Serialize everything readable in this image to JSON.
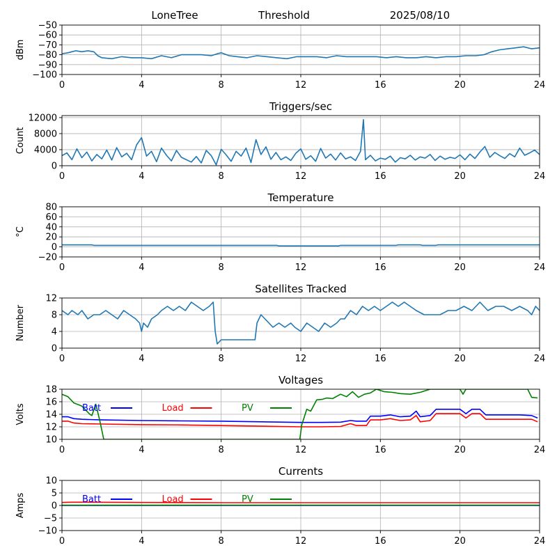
{
  "header": {
    "station": "LoneTree",
    "mode": "Threshold",
    "date": "2025/08/10"
  },
  "chart_data": [
    {
      "id": "dbm",
      "type": "line",
      "title": "",
      "xlabel": "",
      "ylabel": "dBm",
      "xlim": [
        0,
        24
      ],
      "ylim": [
        -100,
        -50
      ],
      "xticks": [
        "0",
        "4",
        "8",
        "12",
        "16",
        "20",
        "24"
      ],
      "yticks": [
        "−50",
        "−60",
        "−70",
        "−80",
        "−90",
        "−100"
      ],
      "ytick_values": [
        -50,
        -60,
        -70,
        -80,
        -90,
        -100
      ],
      "grid": true,
      "series": [
        {
          "color": "#1f77b4",
          "x": [
            0,
            0.3,
            0.5,
            0.7,
            1.0,
            1.3,
            1.6,
            1.8,
            2.0,
            2.5,
            3.0,
            3.5,
            4.0,
            4.5,
            5.0,
            5.5,
            6.0,
            6.5,
            7.0,
            7.5,
            7.8,
            8.0,
            8.4,
            8.8,
            9.3,
            9.8,
            10.3,
            10.8,
            11.3,
            11.8,
            12.3,
            12.8,
            13.3,
            13.8,
            14.3,
            14.8,
            15.3,
            15.8,
            16.3,
            16.8,
            17.3,
            17.8,
            18.3,
            18.8,
            19.3,
            19.8,
            20.3,
            20.8,
            21.2,
            21.6,
            22.0,
            22.4,
            22.8,
            23.2,
            23.6,
            24.0
          ],
          "y": [
            -79,
            -78,
            -77,
            -76,
            -77,
            -76,
            -77,
            -81,
            -83,
            -84,
            -82,
            -83,
            -83,
            -84,
            -81,
            -83,
            -80,
            -80,
            -80,
            -81,
            -79,
            -78,
            -81,
            -82,
            -83,
            -81,
            -82,
            -83,
            -84,
            -82,
            -82,
            -82,
            -83,
            -81,
            -82,
            -82,
            -82,
            -82,
            -83,
            -82,
            -83,
            -83,
            -82,
            -83,
            -82,
            -82,
            -81,
            -81,
            -80,
            -77,
            -75,
            -74,
            -73,
            -72,
            -74,
            -73
          ]
        }
      ]
    },
    {
      "id": "triggers",
      "type": "line",
      "title": "Triggers/sec",
      "xlabel": "",
      "ylabel": "Count",
      "xlim": [
        0,
        24
      ],
      "ylim": [
        0,
        12500
      ],
      "xticks": [
        "0",
        "4",
        "8",
        "12",
        "16",
        "20",
        "24"
      ],
      "yticks": [
        "0",
        "4000",
        "8000",
        "12000"
      ],
      "ytick_values": [
        0,
        4000,
        8000,
        12000
      ],
      "grid": true,
      "series": [
        {
          "color": "#1f77b4",
          "x": [
            0,
            0.25,
            0.5,
            0.75,
            1.0,
            1.25,
            1.5,
            1.75,
            2.0,
            2.25,
            2.5,
            2.75,
            3.0,
            3.25,
            3.5,
            3.75,
            4.0,
            4.25,
            4.5,
            4.75,
            5.0,
            5.25,
            5.5,
            5.75,
            6.0,
            6.25,
            6.5,
            6.75,
            7.0,
            7.25,
            7.5,
            7.75,
            8.0,
            8.25,
            8.5,
            8.75,
            9.0,
            9.25,
            9.5,
            9.75,
            10.0,
            10.25,
            10.5,
            10.75,
            11.0,
            11.25,
            11.5,
            11.75,
            12.0,
            12.25,
            12.5,
            12.75,
            13.0,
            13.25,
            13.5,
            13.75,
            14.0,
            14.25,
            14.5,
            14.75,
            15.0,
            15.15,
            15.25,
            15.5,
            15.75,
            16.0,
            16.25,
            16.5,
            16.75,
            17.0,
            17.25,
            17.5,
            17.75,
            18.0,
            18.25,
            18.5,
            18.75,
            19.0,
            19.25,
            19.5,
            19.75,
            20.0,
            20.25,
            20.5,
            20.75,
            21.0,
            21.25,
            21.5,
            21.75,
            22.0,
            22.25,
            22.5,
            22.75,
            23.0,
            23.25,
            23.5,
            23.75,
            24.0
          ],
          "y": [
            2500,
            3200,
            1500,
            4200,
            2000,
            3400,
            1200,
            2800,
            1700,
            3900,
            1400,
            4500,
            2200,
            3100,
            1500,
            5200,
            7000,
            2400,
            3600,
            1000,
            4400,
            2600,
            1200,
            3800,
            2100,
            1500,
            900,
            2300,
            700,
            3800,
            2500,
            200,
            4100,
            2700,
            1100,
            3600,
            2400,
            4400,
            800,
            6500,
            2800,
            4700,
            1600,
            3300,
            1500,
            2200,
            1300,
            3100,
            4200,
            1600,
            2500,
            1100,
            4300,
            1900,
            2900,
            1400,
            3200,
            1700,
            2200,
            1300,
            3600,
            11500,
            1500,
            2600,
            1200,
            1900,
            1600,
            2400,
            900,
            2000,
            1700,
            2600,
            1400,
            2200,
            1900,
            2800,
            1300,
            2400,
            1600,
            2100,
            1800,
            2700,
            1500,
            2900,
            1800,
            3400,
            4800,
            2100,
            3300,
            2500,
            1800,
            3000,
            2200,
            4400,
            2600,
            3200,
            3900,
            2800
          ]
        }
      ]
    },
    {
      "id": "temperature",
      "type": "line",
      "title": "Temperature",
      "xlabel": "",
      "ylabel": "°C",
      "xlim": [
        0,
        24
      ],
      "ylim": [
        -20,
        80
      ],
      "xticks": [
        "0",
        "4",
        "8",
        "12",
        "16",
        "20",
        "24"
      ],
      "yticks": [
        "−20",
        "0",
        "20",
        "40",
        "60",
        "80"
      ],
      "ytick_values": [
        -20,
        0,
        20,
        40,
        60,
        80
      ],
      "grid": true,
      "series": [
        {
          "color": "#1f77b4",
          "x": [
            0,
            1.5,
            1.6,
            10.8,
            10.9,
            13.9,
            14.0,
            16.8,
            16.9,
            18.0,
            18.1,
            18.8,
            18.9,
            24.0
          ],
          "y": [
            4,
            4,
            3,
            3,
            2,
            2,
            3,
            3,
            4,
            4,
            3,
            3,
            4,
            4
          ]
        }
      ]
    },
    {
      "id": "satellites",
      "type": "line",
      "title": "Satellites Tracked",
      "xlabel": "",
      "ylabel": "Number",
      "xlim": [
        0,
        24
      ],
      "ylim": [
        0,
        12
      ],
      "xticks": [
        "0",
        "4",
        "8",
        "12",
        "16",
        "20",
        "24"
      ],
      "yticks": [
        "0",
        "4",
        "8",
        "12"
      ],
      "ytick_values": [
        0,
        4,
        8,
        12
      ],
      "grid": true,
      "series": [
        {
          "color": "#1f77b4",
          "x": [
            0,
            0.3,
            0.5,
            0.8,
            1.0,
            1.3,
            1.6,
            1.9,
            2.2,
            2.5,
            2.8,
            3.1,
            3.4,
            3.7,
            3.9,
            4.0,
            4.1,
            4.3,
            4.5,
            4.8,
            5.0,
            5.3,
            5.6,
            5.9,
            6.2,
            6.5,
            6.8,
            7.1,
            7.4,
            7.6,
            7.7,
            7.8,
            8.0,
            9.0,
            9.7,
            9.8,
            10.0,
            10.2,
            10.4,
            10.6,
            10.9,
            11.2,
            11.5,
            11.7,
            12.0,
            12.3,
            12.6,
            12.9,
            13.2,
            13.5,
            13.8,
            14.0,
            14.2,
            14.5,
            14.8,
            15.1,
            15.4,
            15.7,
            16.0,
            16.3,
            16.6,
            16.9,
            17.2,
            17.5,
            17.8,
            18.2,
            18.6,
            19.0,
            19.4,
            19.8,
            20.2,
            20.6,
            21.0,
            21.4,
            21.8,
            22.2,
            22.6,
            23.0,
            23.4,
            23.6,
            23.8,
            24.0
          ],
          "y": [
            9,
            8,
            9,
            8,
            9,
            7,
            8,
            8,
            9,
            8,
            7,
            9,
            8,
            7,
            6,
            4,
            6,
            5,
            7,
            8,
            9,
            10,
            9,
            10,
            9,
            11,
            10,
            9,
            10,
            11,
            4,
            1,
            2,
            2,
            2,
            6,
            8,
            7,
            6,
            5,
            6,
            5,
            6,
            5,
            4,
            6,
            5,
            4,
            6,
            5,
            6,
            7,
            7,
            9,
            8,
            10,
            9,
            10,
            9,
            10,
            11,
            10,
            11,
            10,
            9,
            8,
            8,
            8,
            9,
            9,
            10,
            9,
            11,
            9,
            10,
            10,
            9,
            10,
            9,
            8,
            10,
            9
          ]
        }
      ]
    },
    {
      "id": "voltages",
      "type": "line",
      "title": "Voltages",
      "xlabel": "",
      "ylabel": "Volts",
      "xlim": [
        0,
        24
      ],
      "ylim": [
        10,
        18
      ],
      "xticks": [
        "0",
        "4",
        "8",
        "12",
        "16",
        "20",
        "24"
      ],
      "yticks": [
        "10",
        "12",
        "14",
        "16",
        "18"
      ],
      "ytick_values": [
        10,
        12,
        14,
        16,
        18
      ],
      "grid": true,
      "legend": [
        "Batt",
        "Load",
        "PV"
      ],
      "series": [
        {
          "name": "Batt",
          "color": "#0000ff",
          "x": [
            0,
            0.3,
            0.6,
            1.0,
            2.0,
            4.0,
            6.0,
            8.0,
            10.0,
            12.0,
            13.0,
            14.0,
            14.5,
            14.8,
            15.3,
            15.5,
            16.0,
            16.5,
            17.0,
            17.5,
            17.8,
            18.0,
            18.5,
            18.8,
            19.5,
            20.0,
            20.3,
            20.6,
            21.0,
            21.3,
            22.0,
            23.0,
            23.6,
            23.9
          ],
          "y": [
            13.6,
            13.6,
            13.3,
            13.2,
            13.1,
            13.0,
            12.95,
            12.9,
            12.8,
            12.7,
            12.7,
            12.75,
            13.0,
            12.9,
            12.9,
            13.7,
            13.7,
            13.9,
            13.6,
            13.7,
            14.5,
            13.6,
            13.8,
            14.8,
            14.8,
            14.8,
            14.1,
            14.8,
            14.8,
            13.9,
            13.9,
            13.9,
            13.8,
            13.4
          ]
        },
        {
          "name": "Load",
          "color": "#ff0000",
          "x": [
            0,
            0.3,
            0.6,
            1.0,
            2.0,
            4.0,
            6.0,
            8.0,
            10.0,
            12.0,
            13.0,
            14.0,
            14.5,
            14.8,
            15.3,
            15.5,
            16.0,
            16.5,
            17.0,
            17.5,
            17.8,
            18.0,
            18.5,
            18.8,
            19.5,
            20.0,
            20.3,
            20.6,
            21.0,
            21.3,
            22.0,
            23.0,
            23.6,
            23.9
          ],
          "y": [
            12.9,
            12.9,
            12.6,
            12.5,
            12.45,
            12.35,
            12.3,
            12.2,
            12.1,
            12.0,
            12.0,
            12.05,
            12.5,
            12.2,
            12.2,
            13.1,
            13.1,
            13.3,
            13.0,
            13.1,
            13.8,
            12.8,
            13.0,
            14.1,
            14.1,
            14.1,
            13.4,
            14.1,
            14.1,
            13.2,
            13.2,
            13.2,
            13.2,
            12.8
          ]
        },
        {
          "name": "PV",
          "color": "#008000",
          "x": [
            0,
            0.3,
            0.6,
            1.0,
            1.4,
            1.5,
            1.7,
            1.9,
            2.1,
            11.95,
            12.05,
            12.3,
            12.5,
            12.8,
            13.1,
            13.3,
            13.6,
            14.0,
            14.3,
            14.6,
            14.9,
            15.2,
            15.5,
            15.8,
            16.2,
            16.6,
            17.0,
            17.5,
            18.0,
            18.5,
            19.0,
            19.5,
            20.0,
            20.15,
            20.3,
            20.6,
            21.0,
            21.5,
            22.0,
            22.5,
            23.0,
            23.4,
            23.6,
            23.9
          ],
          "y": [
            17.2,
            16.8,
            15.8,
            15.3,
            14.0,
            13.8,
            15.6,
            13.0,
            10.0,
            10.0,
            12.3,
            14.8,
            14.5,
            16.3,
            16.4,
            16.6,
            16.5,
            17.2,
            16.8,
            17.6,
            16.7,
            17.2,
            17.4,
            18.0,
            17.6,
            17.5,
            17.3,
            17.2,
            17.5,
            18.0,
            18.0,
            18.0,
            18.0,
            17.2,
            18.0,
            18.0,
            18.0,
            18.0,
            18.0,
            18.0,
            18.0,
            18.0,
            16.7,
            16.6
          ]
        }
      ]
    },
    {
      "id": "currents",
      "type": "line",
      "title": "Currents",
      "xlabel": "",
      "ylabel": "Amps",
      "xlim": [
        0,
        24
      ],
      "ylim": [
        -10,
        10
      ],
      "xticks": [
        "0",
        "4",
        "8",
        "12",
        "16",
        "20",
        "24"
      ],
      "yticks": [
        "−10",
        "−5",
        "0",
        "5",
        "10"
      ],
      "ytick_values": [
        -10,
        -5,
        0,
        5,
        10
      ],
      "grid": true,
      "legend": [
        "Batt",
        "Load",
        "PV"
      ],
      "series": [
        {
          "name": "Batt",
          "color": "#0000ff",
          "x": [
            0,
            24
          ],
          "y": [
            0,
            0
          ]
        },
        {
          "name": "Load",
          "color": "#ff0000",
          "x": [
            0,
            0.5,
            1.0,
            4.0,
            8.0,
            12.0,
            16.0,
            20.0,
            24.0
          ],
          "y": [
            1.2,
            1.3,
            1.3,
            1.2,
            1.1,
            1.1,
            1.1,
            1.1,
            1.1
          ]
        },
        {
          "name": "PV",
          "color": "#008000",
          "x": [
            0,
            24
          ],
          "y": [
            0.1,
            0.1
          ]
        }
      ]
    }
  ]
}
